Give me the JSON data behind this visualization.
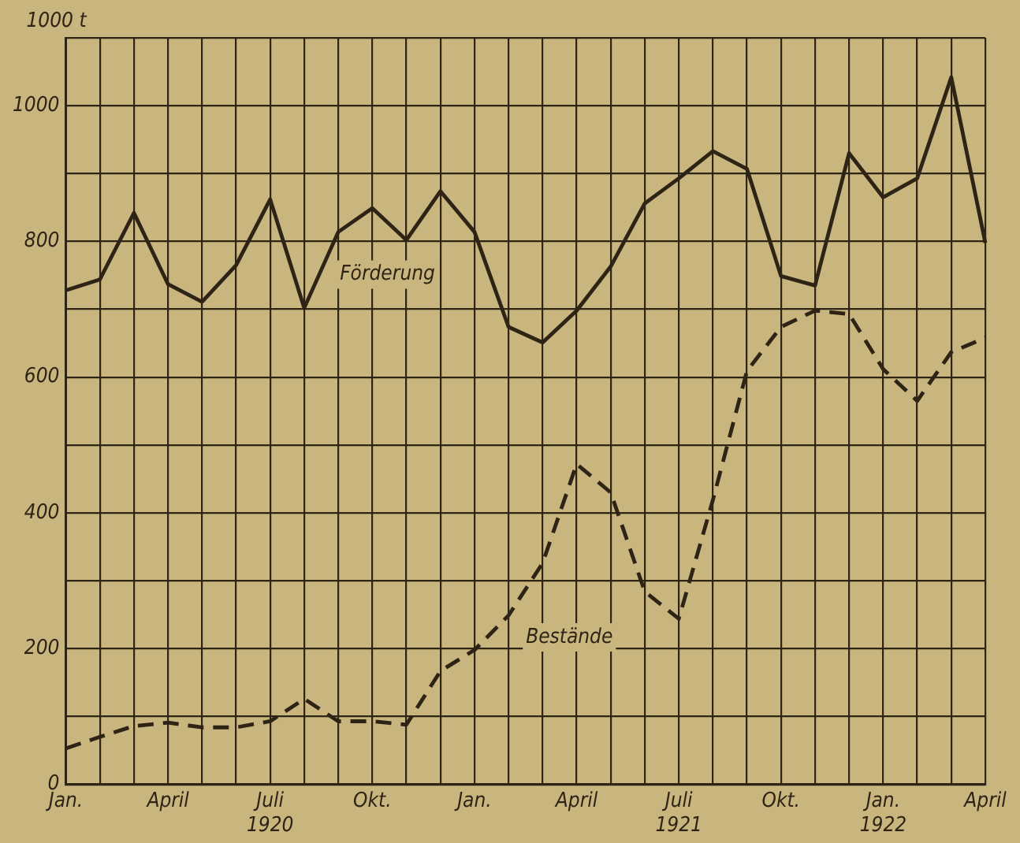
{
  "chart_data": {
    "type": "line",
    "ylabel": "1000 t",
    "categories": [
      "Jan.",
      null,
      null,
      "April",
      null,
      null,
      "Juli\n1920",
      null,
      null,
      "Okt.",
      null,
      null,
      "Jan.",
      null,
      null,
      "April",
      null,
      null,
      "Juli\n1921",
      null,
      null,
      "Okt.",
      null,
      null,
      "Jan.\n1922",
      null,
      null,
      "April"
    ],
    "series": [
      {
        "name": "Förderung",
        "color": "#2e2416",
        "line_style": "solid",
        "values": [
          728,
          744,
          842,
          737,
          711,
          765,
          862,
          702,
          814,
          849,
          802,
          874,
          814,
          674,
          651,
          698,
          763,
          856,
          893,
          933,
          907,
          749,
          735,
          930,
          865,
          893,
          1042,
          798
        ]
      },
      {
        "name": "Bestände",
        "color": "#2e2416",
        "line_style": "dashed",
        "values": [
          53,
          70,
          86,
          91,
          84,
          84,
          93,
          126,
          93,
          93,
          88,
          167,
          198,
          249,
          326,
          472,
          430,
          284,
          244,
          419,
          609,
          674,
          698,
          693,
          612,
          565,
          637,
          658
        ]
      }
    ],
    "ylim": [
      0,
      1100
    ],
    "yticks": [
      0,
      {
        "value": 100,
        "label": null
      },
      200,
      {
        "value": 300,
        "label": null
      },
      400,
      {
        "value": 500,
        "label": null
      },
      600,
      {
        "value": 700,
        "label": null
      },
      800,
      {
        "value": 900,
        "label": null
      },
      1000,
      {
        "value": 1100,
        "label": null
      }
    ],
    "grid": true,
    "legend": false,
    "marker": "none"
  }
}
